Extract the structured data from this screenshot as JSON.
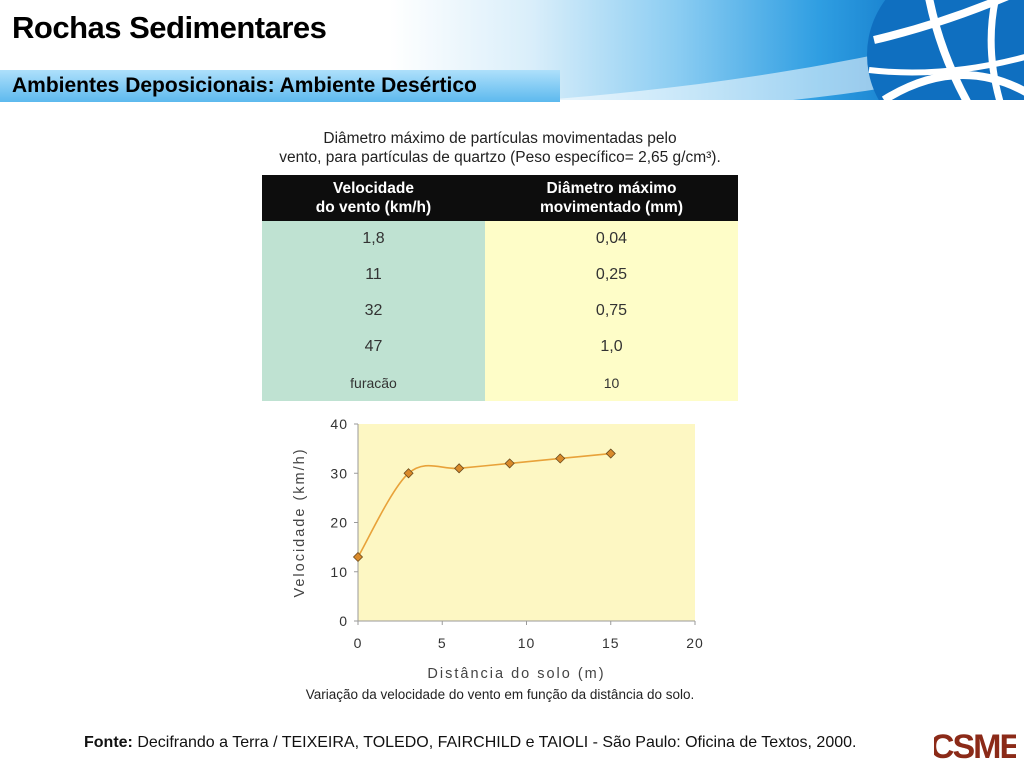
{
  "header": {
    "title": "Rochas Sedimentares",
    "subtitle": "Ambientes Deposicionais: Ambiente Desértico"
  },
  "table": {
    "caption_line1": "Diâmetro máximo de partículas movimentadas pelo",
    "caption_line2": "vento, para partículas de quartzo (Peso específico= 2,65 g/cm³).",
    "headers": [
      {
        "line1": "Velocidade",
        "line2": "do vento (km/h)"
      },
      {
        "line1": "Diâmetro máximo",
        "line2": "movimentado (mm)"
      }
    ],
    "rows": [
      {
        "velocidade": "1,8",
        "diametro": "0,04"
      },
      {
        "velocidade": "11",
        "diametro": "0,25"
      },
      {
        "velocidade": "32",
        "diametro": "0,75"
      },
      {
        "velocidade": "47",
        "diametro": "1,0"
      },
      {
        "velocidade": "furacão",
        "diametro": "10"
      }
    ],
    "colors": {
      "header": "#0d0d0d",
      "col_a": "#bfe2d2",
      "col_b": "#fefdc8"
    }
  },
  "chart_data": {
    "type": "line",
    "x": [
      0,
      3,
      6,
      9,
      12,
      15
    ],
    "series": [
      {
        "values": [
          13,
          30,
          31,
          32,
          33,
          34
        ]
      }
    ],
    "xlabel": "Distância do solo (m)",
    "ylabel": "Velocidade (km/h)",
    "xlim": [
      0,
      20
    ],
    "ylim": [
      0,
      40
    ],
    "xticks": [
      0,
      5,
      10,
      15,
      20
    ],
    "yticks": [
      0,
      10,
      20,
      30,
      40
    ],
    "grid": false,
    "smooth": true,
    "colors": {
      "line": "#e8a23a",
      "marker": "#d98a2b",
      "background": "#fdf7c3"
    },
    "caption": "Variação da velocidade do vento em função da distância do solo."
  },
  "footer": {
    "source_label": "Fonte:",
    "source_text": " Decifrando a Terra / TEIXEIRA, TOLEDO, FAIRCHILD e TAIOLI  - São Paulo: Oficina de Textos, 2000.",
    "logo_text": "CSME",
    "logo_color": "#8b2a18"
  }
}
